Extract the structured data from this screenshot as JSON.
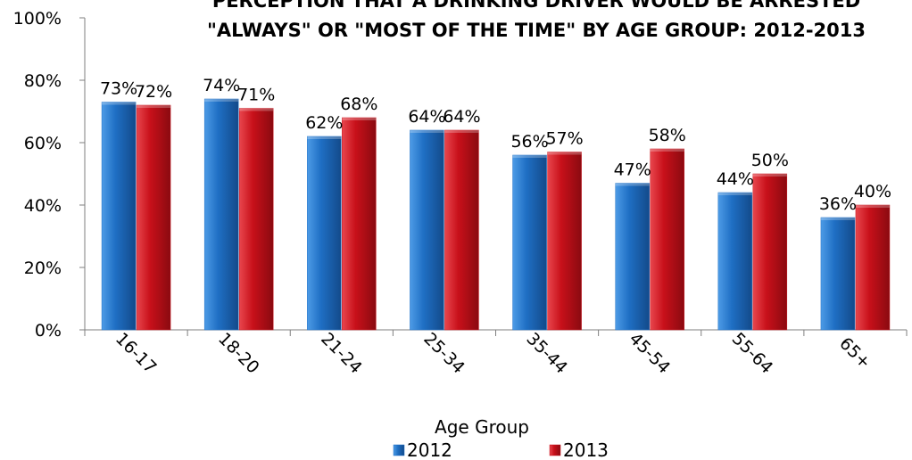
{
  "chart_data": {
    "type": "bar",
    "title": "PERCEPTION THAT A DRINKING DRIVER WOULD BE ARRESTED \"ALWAYS\" OR \"MOST OF THE TIME\" BY AGE GROUP:  2012-2013",
    "title_lines": [
      "PERCEPTION THAT A DRINKING DRIVER WOULD BE ARRESTED",
      "\"ALWAYS\" OR \"MOST OF THE TIME\" BY AGE GROUP:  2012-2013"
    ],
    "xlabel": "Age Group",
    "ylabel": "",
    "categories": [
      "16-17",
      "18-20",
      "21-24",
      "25-34",
      "35-44",
      "45-54",
      "55-64",
      "65+"
    ],
    "series": [
      {
        "name": "2012",
        "values": [
          73,
          74,
          62,
          64,
          56,
          47,
          44,
          36
        ],
        "color": "#1f6fc4"
      },
      {
        "name": "2013",
        "values": [
          72,
          71,
          68,
          64,
          57,
          58,
          50,
          40
        ],
        "color": "#c8101a"
      }
    ],
    "value_suffix": "%",
    "ylim": [
      0,
      100
    ],
    "yticks": [
      0,
      20,
      40,
      60,
      80,
      100
    ],
    "ytick_labels": [
      "0%",
      "20%",
      "40%",
      "60%",
      "80%",
      "100%"
    ],
    "grid": false,
    "legend_position": "bottom"
  }
}
